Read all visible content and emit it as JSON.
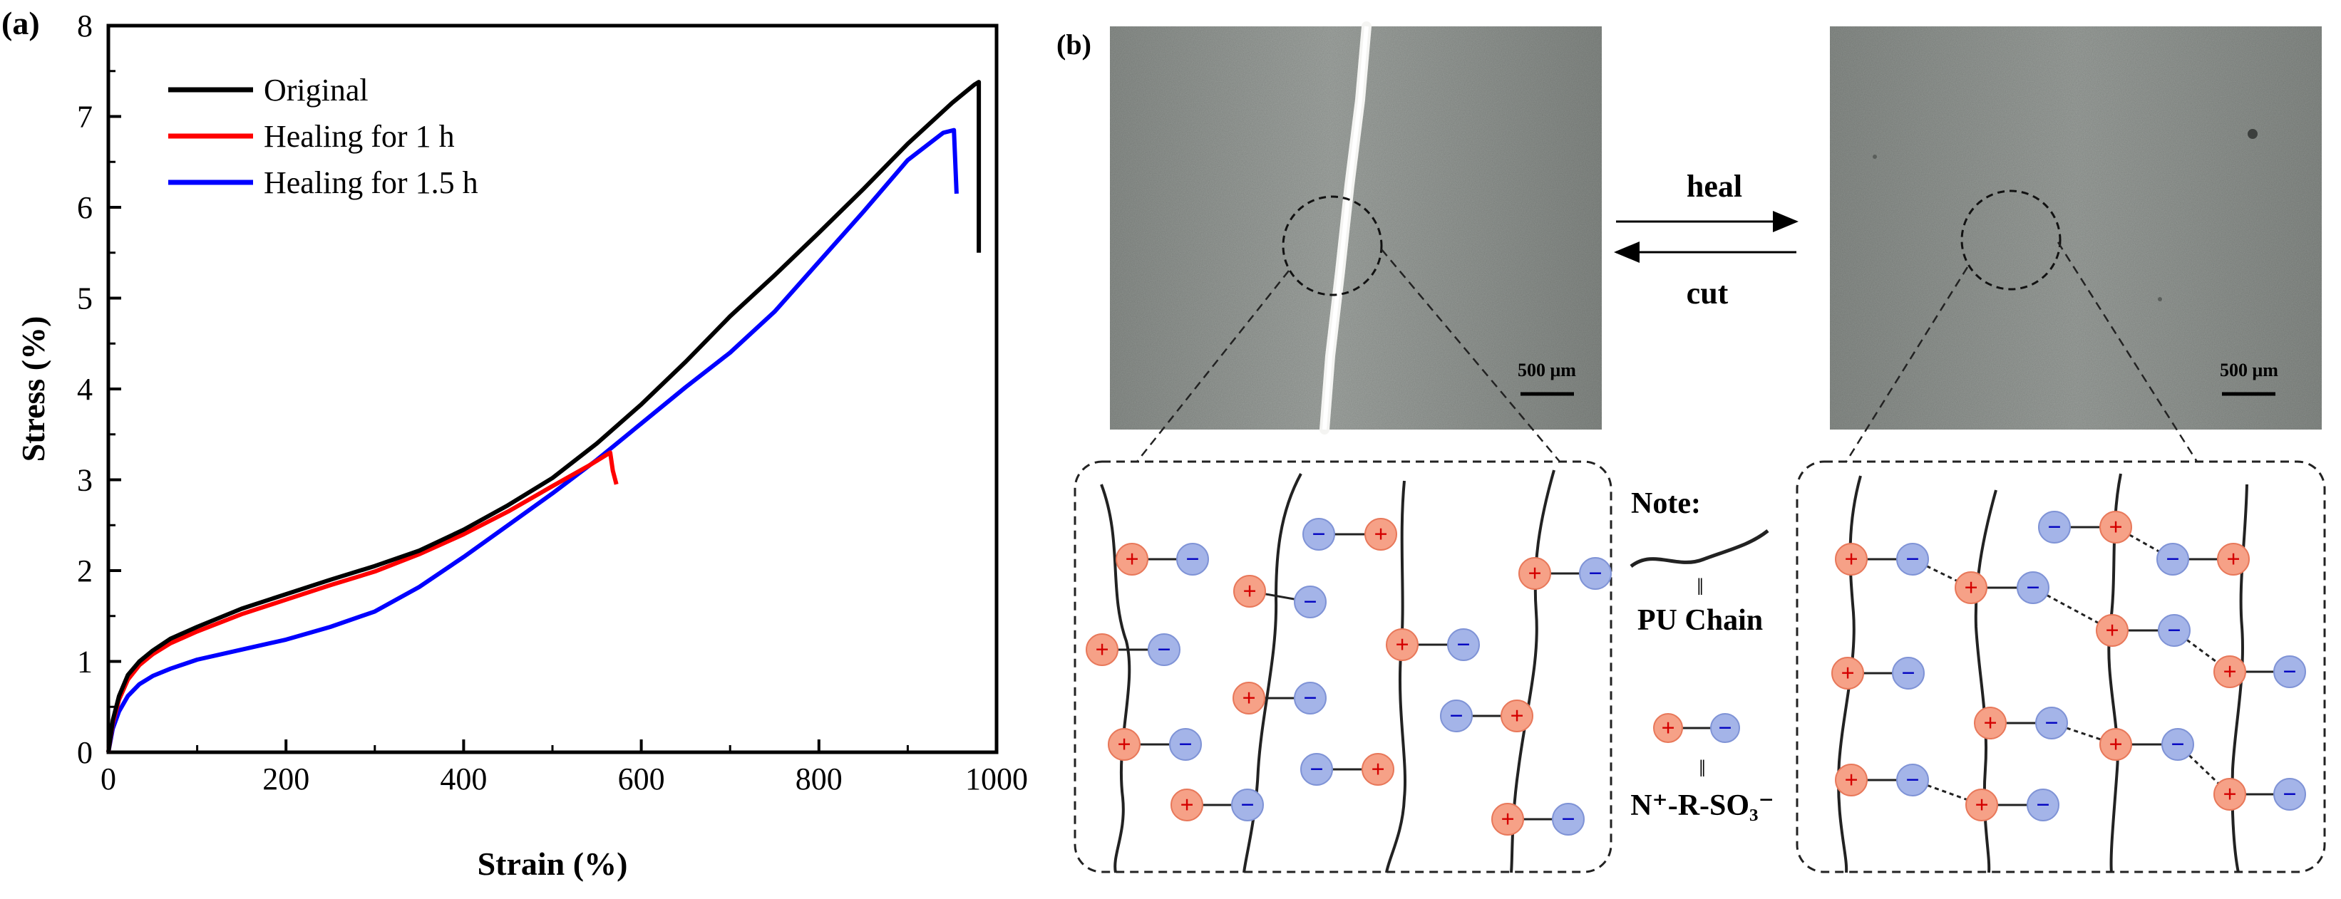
{
  "panel_a": {
    "label": "(a)",
    "chart_data": {
      "type": "line",
      "title": "",
      "xlabel": "Strain (%)",
      "ylabel": "Stress (%)",
      "xlim": [
        0,
        1000
      ],
      "ylim": [
        0,
        8
      ],
      "xticks": [
        "0",
        "200",
        "400",
        "600",
        "800",
        "1000"
      ],
      "yticks": [
        "0",
        "1",
        "2",
        "3",
        "4",
        "5",
        "6",
        "7",
        "8"
      ],
      "grid": false,
      "legend_position": "top-left",
      "series": [
        {
          "name": "Original",
          "color": "#000000",
          "x": [
            0,
            5,
            12,
            22,
            35,
            50,
            70,
            100,
            150,
            200,
            250,
            300,
            350,
            400,
            450,
            500,
            550,
            600,
            650,
            700,
            750,
            800,
            850,
            900,
            950,
            975,
            980,
            980
          ],
          "y": [
            0,
            0.35,
            0.62,
            0.85,
            1.0,
            1.12,
            1.25,
            1.38,
            1.58,
            1.74,
            1.9,
            2.05,
            2.22,
            2.45,
            2.72,
            3.02,
            3.4,
            3.83,
            4.3,
            4.8,
            5.25,
            5.72,
            6.2,
            6.7,
            7.15,
            7.35,
            7.38,
            5.5
          ]
        },
        {
          "name": "Healing for 1 h",
          "color": "#ff0000",
          "x": [
            0,
            5,
            12,
            22,
            35,
            50,
            70,
            100,
            150,
            200,
            250,
            300,
            350,
            400,
            450,
            500,
            540,
            565,
            568,
            572
          ],
          "y": [
            0,
            0.32,
            0.58,
            0.8,
            0.96,
            1.08,
            1.2,
            1.33,
            1.52,
            1.68,
            1.84,
            1.99,
            2.18,
            2.4,
            2.65,
            2.93,
            3.15,
            3.3,
            3.1,
            2.95
          ]
        },
        {
          "name": "Healing for 1.5 h",
          "color": "#0000ff",
          "x": [
            0,
            5,
            12,
            22,
            35,
            50,
            70,
            100,
            150,
            200,
            250,
            300,
            350,
            400,
            450,
            500,
            550,
            600,
            650,
            700,
            750,
            800,
            850,
            900,
            940,
            952,
            955
          ],
          "y": [
            0,
            0.26,
            0.45,
            0.62,
            0.75,
            0.84,
            0.92,
            1.02,
            1.13,
            1.24,
            1.38,
            1.55,
            1.82,
            2.15,
            2.5,
            2.85,
            3.22,
            3.62,
            4.02,
            4.4,
            4.85,
            5.4,
            5.95,
            6.52,
            6.82,
            6.85,
            6.15
          ]
        }
      ]
    }
  },
  "panel_b": {
    "label": "(b)",
    "arrow_heal": "heal",
    "arrow_cut": "cut",
    "scale_bar_left": "500 μm",
    "scale_bar_right": "500 μm",
    "note_title": "Note:",
    "note_chain_label": "PU Chain",
    "note_ion_label": "N⁺-R-SO₃⁻",
    "note_separator": "‖",
    "cation_symbol": "+",
    "anion_symbol": "−",
    "colors": {
      "cation_fill": "#f6a187",
      "cation_stroke": "#e8785a",
      "cation_sign": "#d40000",
      "anion_fill": "#a4b4e8",
      "anion_stroke": "#7f93d6",
      "anion_sign": "#0000c0",
      "photo_gray": "#8f9490"
    }
  }
}
